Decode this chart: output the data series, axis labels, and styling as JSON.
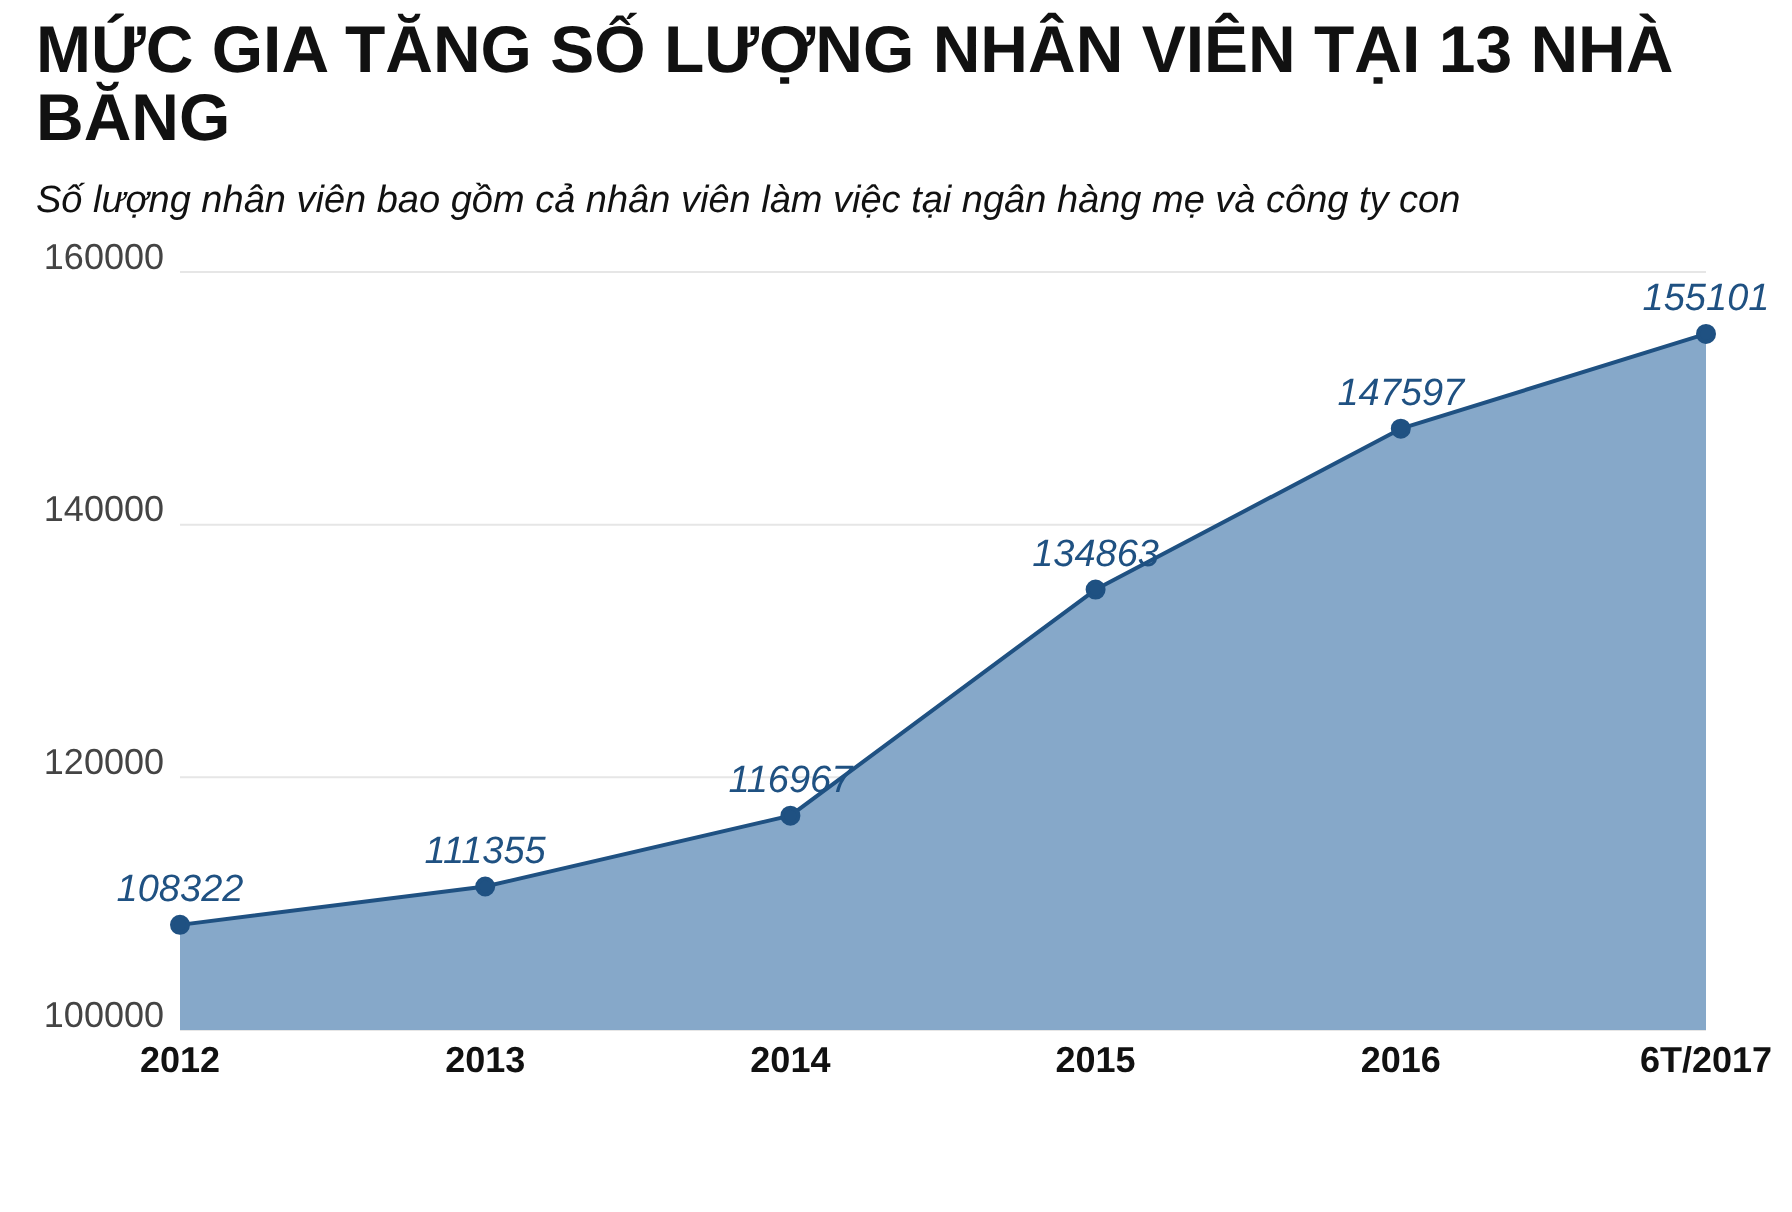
{
  "chart_data": {
    "type": "area",
    "title": "MỨC GIA TĂNG SỐ LƯỢNG NHÂN VIÊN TẠI 13 NHÀ BĂNG",
    "subtitle": "Số lượng nhân viên bao gồm cả nhân viên làm việc tại ngân hàng mẹ và công ty con",
    "categories": [
      "2012",
      "2013",
      "2014",
      "2015",
      "2016",
      "6T/2017"
    ],
    "series": [
      {
        "color": "#86a8c9",
        "values": [
          108322,
          111355,
          116967,
          134863,
          147597,
          155101
        ]
      }
    ],
    "ylim": [
      100000,
      160000
    ],
    "yticks": [
      100000,
      120000,
      140000,
      160000
    ],
    "grid": "y",
    "marker": "circle",
    "data_labels": true,
    "legend": false
  }
}
